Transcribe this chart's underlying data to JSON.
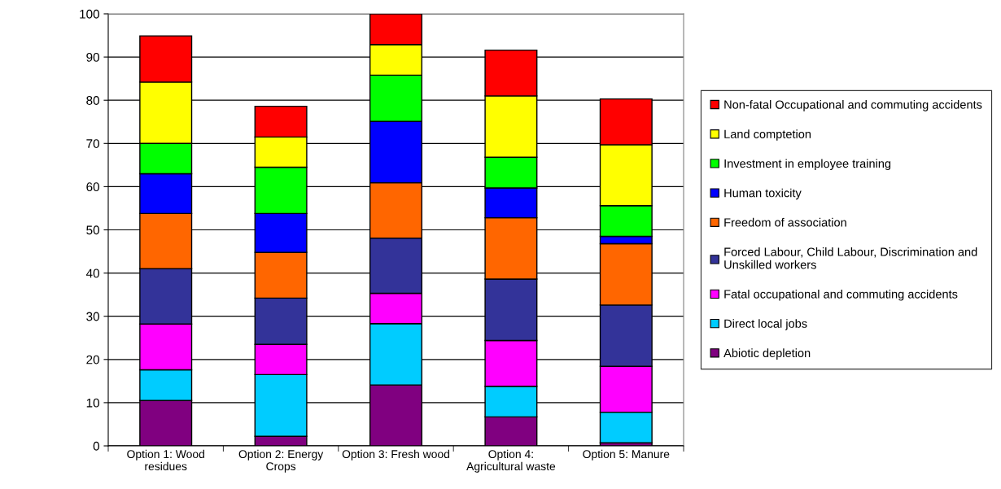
{
  "chart_data": {
    "type": "bar",
    "stacked": true,
    "categories": [
      "Option 1: Wood residues",
      "Option 2: Energy Crops",
      "Option 3: Fresh wood",
      "Option 4: Agricultural waste",
      "Option 5: Manure"
    ],
    "series": [
      {
        "name": "Abiotic depletion",
        "color": "#800080",
        "values": [
          10.5,
          2.2,
          14.1,
          6.7,
          0.7
        ]
      },
      {
        "name": "Direct local jobs",
        "color": "#00ccff",
        "values": [
          7.1,
          14.3,
          14.2,
          7.1,
          7.1
        ]
      },
      {
        "name": "Fatal occupational and commuting accidents",
        "color": "#ff00ff",
        "values": [
          10.6,
          7.0,
          7.0,
          10.6,
          10.6
        ]
      },
      {
        "name": "Forced Labour, Child Labour, Discrimination and Unskilled workers",
        "color": "#333399",
        "values": [
          12.8,
          10.7,
          12.8,
          14.2,
          14.2
        ]
      },
      {
        "name": "Freedom of association",
        "color": "#ff6600",
        "values": [
          12.8,
          10.6,
          12.8,
          14.2,
          14.2
        ]
      },
      {
        "name": "Human toxicity",
        "color": "#0000ff",
        "values": [
          9.2,
          9.0,
          14.2,
          6.9,
          1.7
        ]
      },
      {
        "name": "Investment in employee training",
        "color": "#00ff00",
        "values": [
          7.0,
          10.7,
          10.7,
          7.1,
          7.1
        ]
      },
      {
        "name": "Land comptetion",
        "color": "#ffff00",
        "values": [
          14.2,
          7.0,
          7.1,
          14.2,
          14.1
        ]
      },
      {
        "name": "Non-fatal Occupational and commuting accidents",
        "color": "#ff0000",
        "values": [
          10.7,
          7.1,
          7.1,
          10.6,
          10.6
        ]
      }
    ],
    "ylim": [
      0,
      100
    ],
    "yticks": [
      0,
      10,
      20,
      30,
      40,
      50,
      60,
      70,
      80,
      90,
      100
    ],
    "grid": "y",
    "legend": "right"
  }
}
